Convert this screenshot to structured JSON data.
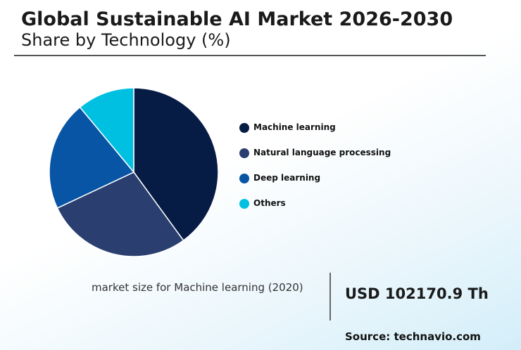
{
  "header": {
    "title": "Global Sustainable AI Market 2026-2030",
    "subtitle": "Share by Technology (%)"
  },
  "chart_data": {
    "type": "pie",
    "title": "Global Sustainable AI Market 2026-2030",
    "subtitle": "Share by Technology (%)",
    "legend_position": "right",
    "slices": [
      {
        "name": "Machine learning",
        "value": 40,
        "color": "#071c45"
      },
      {
        "name": "Natural language processing",
        "value": 28,
        "color": "#2a3f70"
      },
      {
        "name": "Deep learning",
        "value": 21,
        "color": "#0755a4"
      },
      {
        "name": "Others",
        "value": 11,
        "color": "#00c0e2"
      }
    ]
  },
  "footer": {
    "market_size_label": "market size for Machine learning (2020)",
    "market_size_value": "USD 102170.9 Th",
    "source": "Source: technavio.com"
  }
}
